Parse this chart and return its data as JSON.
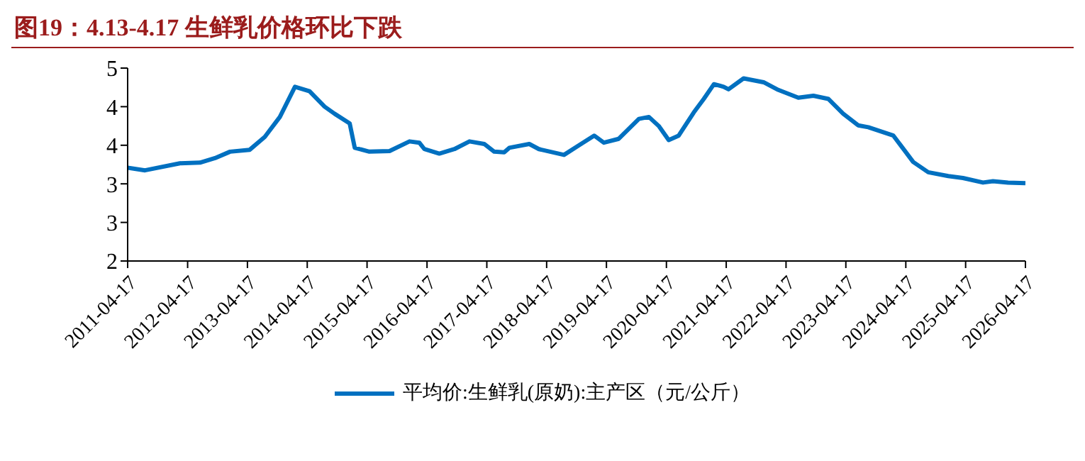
{
  "chart_data": {
    "type": "line",
    "title": "图19：4.13-4.17 生鲜乳价格环比下跌",
    "x": [
      "2011-04-17",
      "2011-08",
      "2012-03",
      "2012-07",
      "2012-10",
      "2013-01",
      "2013-05",
      "2013-08",
      "2013-11",
      "2014-02",
      "2014-05",
      "2014-08",
      "2014-10",
      "2015-01",
      "2015-02",
      "2015-05",
      "2015-09",
      "2016-01",
      "2016-03",
      "2016-04",
      "2016-07",
      "2016-10",
      "2017-01",
      "2017-04",
      "2017-06",
      "2017-08",
      "2017-09",
      "2018-01",
      "2018-03",
      "2018-08",
      "2018-11",
      "2019-02",
      "2019-04",
      "2019-07",
      "2019-11",
      "2020-01",
      "2020-03",
      "2020-05",
      "2020-07",
      "2020-10",
      "2020-12",
      "2021-02",
      "2021-04",
      "2021-05",
      "2021-08",
      "2021-12",
      "2022-03",
      "2022-07",
      "2022-10",
      "2023-01",
      "2023-04",
      "2023-07",
      "2023-09",
      "2024-02",
      "2024-06",
      "2024-09",
      "2025-01",
      "2025-04",
      "2025-08",
      "2025-10",
      "2026-01",
      "2026-04-17"
    ],
    "series": [
      {
        "name": "平均价:生鲜乳(原奶):主产区（元/公斤）",
        "color": "#0070c0",
        "values": [
          3.45,
          3.41,
          3.52,
          3.53,
          3.6,
          3.7,
          3.73,
          3.93,
          4.24,
          4.71,
          4.64,
          4.4,
          4.29,
          4.14,
          3.76,
          3.7,
          3.71,
          3.86,
          3.84,
          3.74,
          3.67,
          3.74,
          3.86,
          3.82,
          3.7,
          3.69,
          3.76,
          3.82,
          3.74,
          3.65,
          3.8,
          3.95,
          3.84,
          3.9,
          4.21,
          4.24,
          4.1,
          3.88,
          3.95,
          4.31,
          4.52,
          4.75,
          4.71,
          4.67,
          4.84,
          4.78,
          4.66,
          4.54,
          4.57,
          4.52,
          4.29,
          4.11,
          4.08,
          3.95,
          3.54,
          3.38,
          3.32,
          3.29,
          3.22,
          3.24,
          3.22,
          3.21
        ]
      }
    ],
    "xlim": [
      "2011-04-17",
      "2026-04-17"
    ],
    "xticks": [
      "2011-04-17",
      "2012-04-17",
      "2013-04-17",
      "2014-04-17",
      "2015-04-17",
      "2016-04-17",
      "2017-04-17",
      "2018-04-17",
      "2019-04-17",
      "2020-04-17",
      "2021-04-17",
      "2022-04-17",
      "2023-04-17",
      "2024-04-17",
      "2025-04-17",
      "2026-04-17"
    ],
    "ylim": [
      2,
      5
    ],
    "yticks": [
      {
        "value": 2,
        "label": "2"
      },
      {
        "value": 2.6,
        "label": "3"
      },
      {
        "value": 3.2,
        "label": "3"
      },
      {
        "value": 3.8,
        "label": "4"
      },
      {
        "value": 4.4,
        "label": "4"
      },
      {
        "value": 5,
        "label": "5"
      }
    ],
    "grid": false,
    "legend": "bottom",
    "marker": "none",
    "line_style": "solid"
  }
}
